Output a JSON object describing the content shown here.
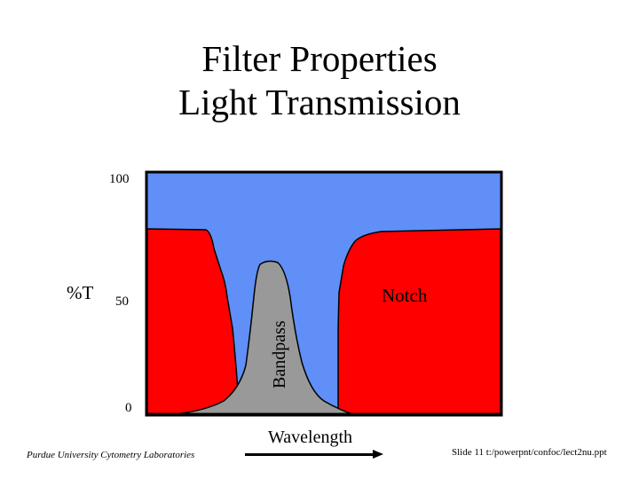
{
  "title": {
    "line1": "Filter Properties",
    "line2": "Light Transmission"
  },
  "axes": {
    "y_label": "%T",
    "y_ticks": [
      "100",
      "50",
      "0"
    ],
    "x_label": "Wavelength"
  },
  "filters": {
    "bandpass_label": "Bandpass",
    "notch_label": "Notch"
  },
  "colors": {
    "background_fill": "#5f8ff7",
    "notch_fill": "#ff0000",
    "bandpass_fill": "#999999",
    "frame": "#000000"
  },
  "footer": {
    "left": "Purdue University Cytometry Laboratories",
    "right": "Slide 11  t:/powerpnt/confoc/lect2nu.ppt"
  }
}
